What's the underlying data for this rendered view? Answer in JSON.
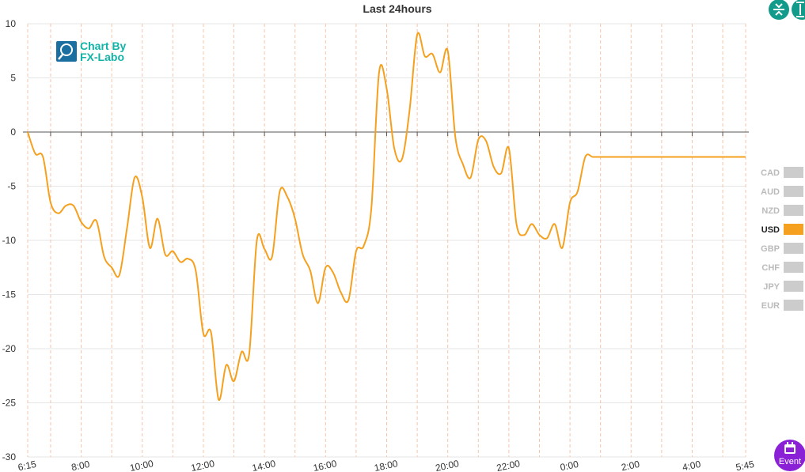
{
  "chart_data": {
    "type": "line",
    "title": "Last 24hours",
    "xlabel": "",
    "ylabel": "",
    "ylim": [
      -30,
      10
    ],
    "yticks": [
      10,
      5,
      0,
      -5,
      -10,
      -15,
      -20,
      -25,
      -30
    ],
    "xticks": [
      "6:15",
      "8:00",
      "10:00",
      "12:00",
      "14:00",
      "16:00",
      "18:00",
      "20:00",
      "22:00",
      "0:00",
      "2:00",
      "4:00",
      "5:45"
    ],
    "xlim": [
      "6:15",
      "5:45"
    ],
    "grid": true,
    "legend_position": "right",
    "series": [
      {
        "name": "USD",
        "color": "#f5a01e",
        "x": [
          "6:15",
          "6:30",
          "6:45",
          "7:00",
          "7:15",
          "7:30",
          "7:45",
          "8:00",
          "8:15",
          "8:30",
          "8:45",
          "9:00",
          "9:15",
          "9:30",
          "9:45",
          "10:00",
          "10:15",
          "10:30",
          "10:45",
          "11:00",
          "11:15",
          "11:30",
          "11:45",
          "12:00",
          "12:15",
          "12:30",
          "12:45",
          "13:00",
          "13:15",
          "13:30",
          "13:45",
          "14:00",
          "14:15",
          "14:30",
          "14:45",
          "15:00",
          "15:15",
          "15:30",
          "15:45",
          "16:00",
          "16:15",
          "16:30",
          "16:45",
          "17:00",
          "17:15",
          "17:30",
          "17:45",
          "18:00",
          "18:15",
          "18:30",
          "18:45",
          "19:00",
          "19:15",
          "19:30",
          "19:45",
          "20:00",
          "20:15",
          "20:30",
          "20:45",
          "21:00",
          "21:15",
          "21:30",
          "21:45",
          "22:00",
          "22:15",
          "22:30",
          "22:45",
          "23:00",
          "23:15",
          "23:30",
          "23:45",
          "0:00",
          "0:15",
          "0:30",
          "0:45",
          "1:00",
          "1:15",
          "1:30",
          "1:45",
          "2:00",
          "2:15",
          "2:30",
          "2:45",
          "3:00",
          "3:15",
          "3:30",
          "3:45",
          "4:00",
          "4:15",
          "4:30",
          "4:45",
          "5:00",
          "5:15",
          "5:30",
          "5:45"
        ],
        "values": [
          0.0,
          -2.0,
          -2.3,
          -6.5,
          -7.5,
          -6.8,
          -6.8,
          -8.3,
          -8.9,
          -8.2,
          -11.5,
          -12.5,
          -13.2,
          -8.9,
          -4.2,
          -6.0,
          -10.7,
          -8.0,
          -11.3,
          -11.0,
          -12.0,
          -11.7,
          -12.8,
          -18.6,
          -18.5,
          -24.7,
          -21.5,
          -23.0,
          -20.3,
          -20.5,
          -10.0,
          -10.8,
          -11.5,
          -5.5,
          -6.0,
          -8.0,
          -11.3,
          -12.8,
          -15.8,
          -12.5,
          -13.0,
          -14.8,
          -15.5,
          -11.0,
          -10.5,
          -7.0,
          5.5,
          4.0,
          -1.5,
          -2.5,
          2.0,
          9.0,
          7.0,
          7.2,
          5.5,
          7.5,
          -0.5,
          -3.0,
          -4.2,
          -0.7,
          -0.8,
          -3.2,
          -3.8,
          -1.5,
          -8.5,
          -9.5,
          -8.5,
          -9.5,
          -9.8,
          -8.5,
          -10.7,
          -6.5,
          -5.5,
          -2.3,
          -2.3,
          -2.3,
          -2.3,
          -2.3,
          -2.3,
          -2.3,
          -2.3,
          -2.3,
          -2.3,
          -2.3,
          -2.3,
          -2.3,
          -2.3,
          -2.3,
          -2.3,
          -2.3,
          -2.3,
          -2.3,
          -2.3,
          -2.3,
          -2.3
        ]
      }
    ],
    "legend": [
      {
        "label": "CAD",
        "active": false,
        "color": "#cccccc"
      },
      {
        "label": "AUD",
        "active": false,
        "color": "#cccccc"
      },
      {
        "label": "NZD",
        "active": false,
        "color": "#cccccc"
      },
      {
        "label": "USD",
        "active": true,
        "color": "#f5a01e"
      },
      {
        "label": "GBP",
        "active": false,
        "color": "#cccccc"
      },
      {
        "label": "CHF",
        "active": false,
        "color": "#cccccc"
      },
      {
        "label": "JPY",
        "active": false,
        "color": "#cccccc"
      },
      {
        "label": "EUR",
        "active": false,
        "color": "#cccccc"
      }
    ]
  },
  "logo": {
    "line1": "Chart By",
    "line2": "FX-Labo"
  },
  "toolbar": {
    "compress_icon": "compress-vertical-icon",
    "expand_icon": "expand-vertical-icon",
    "accent": "#129a8a"
  },
  "event_button": {
    "label": "Event",
    "icon": "calendar-icon",
    "color": "#8a21d6"
  }
}
